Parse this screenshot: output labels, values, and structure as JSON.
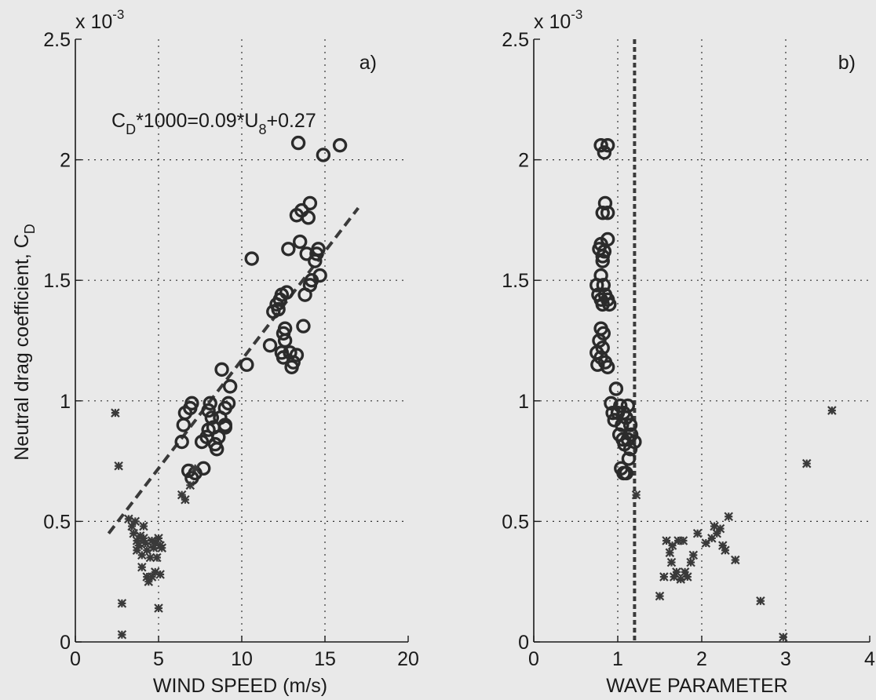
{
  "figure": {
    "ylabel": "Neutral drag coefficient, C",
    "ylabel_sub": "D"
  },
  "chart_data": [
    {
      "type": "scatter",
      "panel_label": "a)",
      "xlabel": "WIND SPEED (m/s)",
      "ylabel": "Neutral drag coefficient, C_D",
      "y_multiplier": "x 10",
      "y_multiplier_exp": "-3",
      "xlim": [
        0,
        20
      ],
      "ylim": [
        0,
        2.5
      ],
      "x_ticks": [
        "0",
        "5",
        "10",
        "15",
        "20"
      ],
      "y_ticks": [
        "0",
        "0.5",
        "1",
        "1.5",
        "2",
        "2.5"
      ],
      "grid": true,
      "annotation": {
        "main": "C",
        "sub1": "D",
        "mid": "*1000=0.09*U",
        "sub2": "8",
        "tail": "+0.27"
      },
      "fit_line": {
        "x": [
          2,
          17
        ],
        "y": [
          0.45,
          1.8
        ]
      },
      "series": [
        {
          "marker": "circle",
          "points": [
            [
              6.4,
              0.83
            ],
            [
              6.5,
              0.9
            ],
            [
              6.6,
              0.95
            ],
            [
              6.9,
              0.97
            ],
            [
              7.0,
              0.99
            ],
            [
              6.8,
              0.71
            ],
            [
              7.0,
              0.68
            ],
            [
              7.2,
              0.7
            ],
            [
              7.7,
              0.72
            ],
            [
              7.6,
              0.83
            ],
            [
              7.9,
              0.85
            ],
            [
              8.0,
              0.88
            ],
            [
              8.0,
              0.96
            ],
            [
              8.1,
              0.99
            ],
            [
              8.2,
              0.93
            ],
            [
              8.3,
              0.89
            ],
            [
              8.4,
              0.82
            ],
            [
              8.5,
              0.8
            ],
            [
              8.6,
              0.85
            ],
            [
              8.7,
              0.93
            ],
            [
              8.8,
              1.13
            ],
            [
              9.0,
              0.9
            ],
            [
              9.0,
              0.97
            ],
            [
              9.2,
              0.99
            ],
            [
              9.3,
              1.06
            ],
            [
              9.0,
              0.89
            ],
            [
              10.3,
              1.15
            ],
            [
              10.6,
              1.59
            ],
            [
              11.7,
              1.23
            ],
            [
              11.9,
              1.37
            ],
            [
              12.1,
              1.4
            ],
            [
              12.2,
              1.38
            ],
            [
              12.3,
              1.42
            ],
            [
              12.4,
              1.44
            ],
            [
              12.4,
              1.2
            ],
            [
              12.5,
              1.18
            ],
            [
              12.5,
              1.28
            ],
            [
              12.6,
              1.3
            ],
            [
              12.6,
              1.25
            ],
            [
              12.7,
              1.45
            ],
            [
              12.8,
              1.63
            ],
            [
              12.9,
              1.2
            ],
            [
              13.0,
              1.14
            ],
            [
              13.1,
              1.16
            ],
            [
              13.3,
              1.19
            ],
            [
              13.3,
              1.77
            ],
            [
              13.4,
              2.07
            ],
            [
              13.5,
              1.66
            ],
            [
              13.6,
              1.79
            ],
            [
              13.7,
              1.31
            ],
            [
              13.8,
              1.44
            ],
            [
              13.9,
              1.61
            ],
            [
              14.0,
              1.76
            ],
            [
              14.1,
              1.82
            ],
            [
              14.1,
              1.48
            ],
            [
              14.2,
              1.5
            ],
            [
              14.4,
              1.58
            ],
            [
              14.5,
              1.61
            ],
            [
              14.6,
              1.63
            ],
            [
              14.7,
              1.52
            ],
            [
              14.9,
              2.02
            ],
            [
              15.9,
              2.06
            ]
          ]
        },
        {
          "marker": "star",
          "points": [
            [
              2.4,
              0.95
            ],
            [
              2.6,
              0.73
            ],
            [
              2.8,
              0.16
            ],
            [
              2.8,
              0.03
            ],
            [
              3.2,
              0.51
            ],
            [
              3.4,
              0.48
            ],
            [
              3.5,
              0.45
            ],
            [
              3.6,
              0.5
            ],
            [
              3.7,
              0.42
            ],
            [
              3.7,
              0.38
            ],
            [
              3.8,
              0.4
            ],
            [
              3.9,
              0.44
            ],
            [
              4.0,
              0.36
            ],
            [
              4.0,
              0.31
            ],
            [
              4.1,
              0.43
            ],
            [
              4.1,
              0.48
            ],
            [
              4.2,
              0.41
            ],
            [
              4.3,
              0.38
            ],
            [
              4.3,
              0.27
            ],
            [
              4.4,
              0.25
            ],
            [
              4.5,
              0.35
            ],
            [
              4.6,
              0.42
            ],
            [
              4.6,
              0.27
            ],
            [
              4.7,
              0.39
            ],
            [
              4.8,
              0.29
            ],
            [
              4.8,
              0.41
            ],
            [
              4.9,
              0.35
            ],
            [
              5.0,
              0.43
            ],
            [
              5.1,
              0.4
            ],
            [
              5.1,
              0.28
            ],
            [
              5.2,
              0.39
            ],
            [
              5.0,
              0.14
            ],
            [
              6.4,
              0.61
            ],
            [
              6.6,
              0.59
            ],
            [
              6.9,
              0.65
            ],
            [
              7.2,
              0.72
            ]
          ]
        }
      ]
    },
    {
      "type": "scatter",
      "panel_label": "b)",
      "xlabel": "WAVE PARAMETER",
      "y_multiplier": "x 10",
      "y_multiplier_exp": "-3",
      "xlim": [
        0,
        4
      ],
      "ylim": [
        0,
        2.5
      ],
      "x_ticks": [
        "0",
        "1",
        "2",
        "3",
        "4"
      ],
      "y_ticks": [
        "0",
        "0.5",
        "1",
        "1.5",
        "2",
        "2.5"
      ],
      "grid": true,
      "vertical_line_x": 1.2,
      "series": [
        {
          "marker": "circle",
          "points": [
            [
              0.8,
              2.06
            ],
            [
              0.88,
              2.06
            ],
            [
              0.84,
              2.03
            ],
            [
              0.82,
              1.78
            ],
            [
              0.85,
              1.82
            ],
            [
              0.88,
              1.78
            ],
            [
              0.8,
              1.65
            ],
            [
              0.82,
              1.6
            ],
            [
              0.88,
              1.67
            ],
            [
              0.78,
              1.63
            ],
            [
              0.84,
              1.62
            ],
            [
              0.82,
              1.58
            ],
            [
              0.75,
              1.48
            ],
            [
              0.8,
              1.52
            ],
            [
              0.83,
              1.48
            ],
            [
              0.77,
              1.44
            ],
            [
              0.8,
              1.42
            ],
            [
              0.85,
              1.44
            ],
            [
              0.88,
              1.42
            ],
            [
              0.82,
              1.4
            ],
            [
              0.9,
              1.4
            ],
            [
              0.8,
              1.3
            ],
            [
              0.83,
              1.28
            ],
            [
              0.78,
              1.25
            ],
            [
              0.82,
              1.22
            ],
            [
              0.75,
              1.2
            ],
            [
              0.8,
              1.18
            ],
            [
              0.85,
              1.16
            ],
            [
              0.88,
              1.14
            ],
            [
              0.76,
              1.15
            ],
            [
              0.98,
              1.05
            ],
            [
              0.92,
              0.99
            ],
            [
              0.94,
              0.95
            ],
            [
              0.96,
              0.92
            ],
            [
              1.0,
              0.95
            ],
            [
              1.03,
              0.98
            ],
            [
              1.05,
              0.9
            ],
            [
              1.07,
              0.95
            ],
            [
              1.1,
              0.93
            ],
            [
              1.12,
              0.98
            ],
            [
              1.15,
              0.9
            ],
            [
              1.02,
              0.86
            ],
            [
              1.06,
              0.84
            ],
            [
              1.08,
              0.82
            ],
            [
              1.12,
              0.84
            ],
            [
              1.16,
              0.86
            ],
            [
              1.2,
              0.83
            ],
            [
              1.04,
              0.72
            ],
            [
              1.07,
              0.7
            ],
            [
              1.1,
              0.7
            ],
            [
              1.13,
              0.76
            ],
            [
              1.15,
              0.8
            ]
          ]
        },
        {
          "marker": "star",
          "points": [
            [
              1.22,
              0.61
            ],
            [
              1.5,
              0.19
            ],
            [
              1.55,
              0.27
            ],
            [
              1.58,
              0.42
            ],
            [
              1.62,
              0.37
            ],
            [
              1.64,
              0.33
            ],
            [
              1.65,
              0.4
            ],
            [
              1.67,
              0.27
            ],
            [
              1.7,
              0.29
            ],
            [
              1.72,
              0.42
            ],
            [
              1.75,
              0.26
            ],
            [
              1.78,
              0.42
            ],
            [
              1.8,
              0.29
            ],
            [
              1.83,
              0.27
            ],
            [
              1.87,
              0.33
            ],
            [
              1.9,
              0.36
            ],
            [
              1.95,
              0.45
            ],
            [
              2.05,
              0.41
            ],
            [
              2.12,
              0.43
            ],
            [
              2.15,
              0.48
            ],
            [
              2.18,
              0.45
            ],
            [
              2.22,
              0.47
            ],
            [
              2.25,
              0.4
            ],
            [
              2.28,
              0.38
            ],
            [
              2.32,
              0.52
            ],
            [
              2.4,
              0.34
            ],
            [
              2.7,
              0.17
            ],
            [
              2.97,
              0.02
            ],
            [
              3.25,
              0.74
            ],
            [
              3.55,
              0.96
            ]
          ]
        }
      ]
    }
  ]
}
